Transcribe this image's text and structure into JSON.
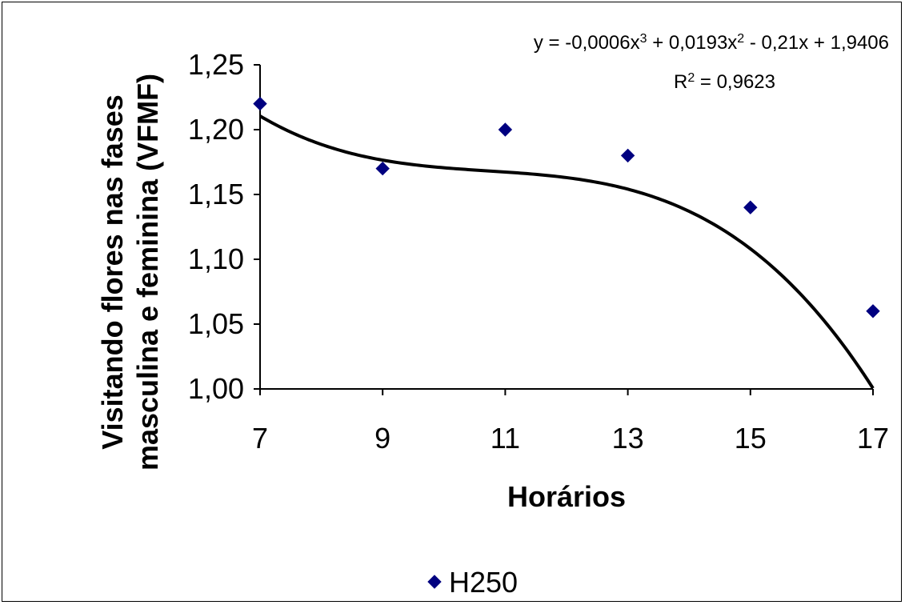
{
  "chart_data": {
    "type": "scatter",
    "title": "",
    "xlabel": "Horários",
    "ylabel_lines": [
      "Visitando flores nas fases",
      "masculina e feminina (VFMF)"
    ],
    "xlim": [
      7,
      17
    ],
    "ylim": [
      1.0,
      1.25
    ],
    "x_ticks": [
      7,
      9,
      11,
      13,
      15,
      17
    ],
    "x_tick_labels": [
      "7",
      "9",
      "11",
      "13",
      "15",
      "17"
    ],
    "y_ticks": [
      1.0,
      1.05,
      1.1,
      1.15,
      1.2,
      1.25
    ],
    "y_tick_labels": [
      "1,00",
      "1,05",
      "1,10",
      "1,15",
      "1,20",
      "1,25"
    ],
    "grid": false,
    "legend_position": "bottom-center",
    "series": [
      {
        "name": "H250",
        "marker": "diamond",
        "color": "#000080",
        "x": [
          7,
          9,
          11,
          13,
          15,
          17
        ],
        "y": [
          1.22,
          1.17,
          1.2,
          1.18,
          1.14,
          1.06
        ]
      }
    ],
    "trendline": {
      "type": "polynomial",
      "order": 3,
      "color": "#000000",
      "coefficients": [
        -0.0006,
        0.0193,
        -0.21,
        1.9406
      ],
      "equation": {
        "prefix": "y = -0,0006x",
        "sup1": "3",
        "mid1": " + 0,0193x",
        "sup2": "2",
        "suffix": " - 0,21x + 1,9406"
      },
      "r_squared": {
        "prefix": "R",
        "sup": "2",
        "suffix": " = 0,9623"
      }
    }
  }
}
